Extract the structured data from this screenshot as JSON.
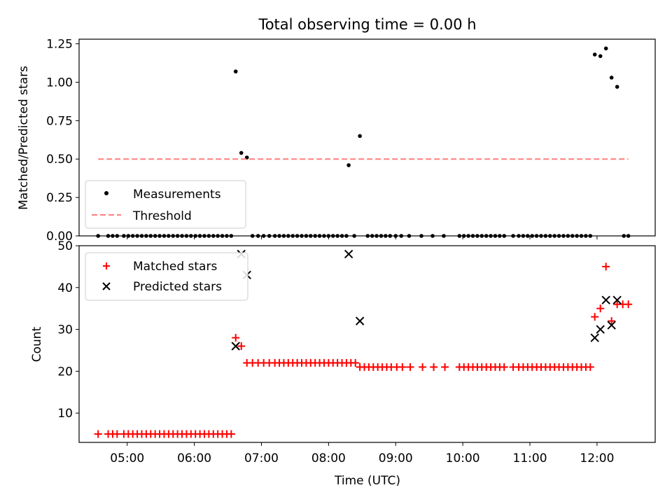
{
  "chart_data": [
    {
      "type": "scatter",
      "title": "Total observing time = 0.00 h",
      "ylabel": "Matched/Predicted stars",
      "xlim": [
        "04:17",
        "12:52"
      ],
      "ylim": [
        0,
        1.28
      ],
      "yticks": [
        0,
        0.25,
        0.5,
        0.75,
        1.0,
        1.25
      ],
      "ytick_labels": [
        "0.00",
        "0.25",
        "0.50",
        "0.75",
        "1.00",
        "1.25"
      ],
      "legend_position": "lower-left",
      "series": [
        {
          "name": "Measurements",
          "marker": "dot",
          "color": "#000000",
          "points": [
            [
              "04:34",
              0
            ],
            [
              "04:43",
              0
            ],
            [
              "04:47",
              0
            ],
            [
              "04:51",
              0
            ],
            [
              "04:57",
              0
            ],
            [
              "05:01",
              0
            ],
            [
              "05:05",
              0
            ],
            [
              "05:09",
              0
            ],
            [
              "05:13",
              0
            ],
            [
              "05:17",
              0
            ],
            [
              "05:21",
              0
            ],
            [
              "05:25",
              0
            ],
            [
              "05:29",
              0
            ],
            [
              "05:33",
              0
            ],
            [
              "05:37",
              0
            ],
            [
              "05:41",
              0
            ],
            [
              "05:45",
              0
            ],
            [
              "05:49",
              0
            ],
            [
              "05:53",
              0
            ],
            [
              "05:57",
              0
            ],
            [
              "06:01",
              0
            ],
            [
              "06:05",
              0
            ],
            [
              "06:09",
              0
            ],
            [
              "06:13",
              0
            ],
            [
              "06:17",
              0
            ],
            [
              "06:21",
              0
            ],
            [
              "06:25",
              0
            ],
            [
              "06:29",
              0
            ],
            [
              "06:33",
              0
            ],
            [
              "06:37",
              1.07
            ],
            [
              "06:42",
              0.54
            ],
            [
              "06:47",
              0.51
            ],
            [
              "06:52",
              0
            ],
            [
              "06:57",
              0
            ],
            [
              "07:02",
              0
            ],
            [
              "07:07",
              0
            ],
            [
              "07:12",
              0
            ],
            [
              "07:16",
              0
            ],
            [
              "07:20",
              0
            ],
            [
              "07:24",
              0
            ],
            [
              "07:28",
              0
            ],
            [
              "07:32",
              0
            ],
            [
              "07:36",
              0
            ],
            [
              "07:40",
              0
            ],
            [
              "07:44",
              0
            ],
            [
              "07:48",
              0
            ],
            [
              "07:52",
              0
            ],
            [
              "07:56",
              0
            ],
            [
              "08:00",
              0
            ],
            [
              "08:04",
              0
            ],
            [
              "08:08",
              0
            ],
            [
              "08:12",
              0
            ],
            [
              "08:16",
              0
            ],
            [
              "08:18",
              0.46
            ],
            [
              "08:28",
              0.65
            ],
            [
              "08:23",
              0
            ],
            [
              "08:35",
              0
            ],
            [
              "08:39",
              0
            ],
            [
              "08:43",
              0
            ],
            [
              "08:47",
              0
            ],
            [
              "08:51",
              0
            ],
            [
              "08:55",
              0
            ],
            [
              "09:00",
              0
            ],
            [
              "09:05",
              0
            ],
            [
              "09:12",
              0
            ],
            [
              "09:23",
              0
            ],
            [
              "09:33",
              0
            ],
            [
              "09:43",
              0
            ],
            [
              "09:57",
              0
            ],
            [
              "10:01",
              0
            ],
            [
              "10:05",
              0
            ],
            [
              "10:09",
              0
            ],
            [
              "10:13",
              0
            ],
            [
              "10:17",
              0
            ],
            [
              "10:21",
              0
            ],
            [
              "10:25",
              0
            ],
            [
              "10:29",
              0
            ],
            [
              "10:33",
              0
            ],
            [
              "10:37",
              0
            ],
            [
              "10:45",
              0
            ],
            [
              "10:50",
              0
            ],
            [
              "10:54",
              0
            ],
            [
              "10:58",
              0
            ],
            [
              "11:02",
              0
            ],
            [
              "11:06",
              0
            ],
            [
              "11:10",
              0
            ],
            [
              "11:14",
              0
            ],
            [
              "11:18",
              0
            ],
            [
              "11:22",
              0
            ],
            [
              "11:26",
              0
            ],
            [
              "11:30",
              0
            ],
            [
              "11:34",
              0
            ],
            [
              "11:38",
              0
            ],
            [
              "11:42",
              0
            ],
            [
              "11:46",
              0
            ],
            [
              "11:50",
              0
            ],
            [
              "11:54",
              0
            ],
            [
              "11:58",
              1.18
            ],
            [
              "12:03",
              1.17
            ],
            [
              "12:08",
              1.22
            ],
            [
              "12:13",
              1.03
            ],
            [
              "12:18",
              0.97
            ],
            [
              "12:24",
              0
            ],
            [
              "12:28",
              0
            ]
          ]
        },
        {
          "name": "Threshold",
          "style": "dashed-line",
          "color": "#ff7f7f",
          "points": [
            [
              "04:34",
              0.5
            ],
            [
              "12:28",
              0.5
            ]
          ]
        }
      ]
    },
    {
      "type": "scatter",
      "ylabel": "Count",
      "xlabel": "Time (UTC)",
      "xlim": [
        "04:17",
        "12:52"
      ],
      "ylim": [
        3,
        50
      ],
      "yticks": [
        10,
        20,
        30,
        40,
        50
      ],
      "ytick_labels": [
        "10",
        "20",
        "30",
        "40",
        "50"
      ],
      "xticks": [
        "05:00",
        "06:00",
        "07:00",
        "08:00",
        "09:00",
        "10:00",
        "11:00",
        "12:00"
      ],
      "legend_position": "upper-left",
      "series": [
        {
          "name": "Matched stars",
          "marker": "plus",
          "color": "#ff0000",
          "points": [
            [
              "04:34",
              5
            ],
            [
              "04:43",
              5
            ],
            [
              "04:47",
              5
            ],
            [
              "04:51",
              5
            ],
            [
              "04:57",
              5
            ],
            [
              "05:01",
              5
            ],
            [
              "05:05",
              5
            ],
            [
              "05:09",
              5
            ],
            [
              "05:13",
              5
            ],
            [
              "05:17",
              5
            ],
            [
              "05:21",
              5
            ],
            [
              "05:25",
              5
            ],
            [
              "05:29",
              5
            ],
            [
              "05:33",
              5
            ],
            [
              "05:37",
              5
            ],
            [
              "05:41",
              5
            ],
            [
              "05:45",
              5
            ],
            [
              "05:49",
              5
            ],
            [
              "05:53",
              5
            ],
            [
              "05:57",
              5
            ],
            [
              "06:01",
              5
            ],
            [
              "06:05",
              5
            ],
            [
              "06:09",
              5
            ],
            [
              "06:13",
              5
            ],
            [
              "06:17",
              5
            ],
            [
              "06:21",
              5
            ],
            [
              "06:25",
              5
            ],
            [
              "06:29",
              5
            ],
            [
              "06:33",
              5
            ],
            [
              "06:37",
              28
            ],
            [
              "06:42",
              26
            ],
            [
              "06:47",
              22
            ],
            [
              "06:52",
              22
            ],
            [
              "06:57",
              22
            ],
            [
              "07:02",
              22
            ],
            [
              "07:07",
              22
            ],
            [
              "07:12",
              22
            ],
            [
              "07:16",
              22
            ],
            [
              "07:20",
              22
            ],
            [
              "07:24",
              22
            ],
            [
              "07:28",
              22
            ],
            [
              "07:32",
              22
            ],
            [
              "07:36",
              22
            ],
            [
              "07:40",
              22
            ],
            [
              "07:44",
              22
            ],
            [
              "07:48",
              22
            ],
            [
              "07:52",
              22
            ],
            [
              "07:56",
              22
            ],
            [
              "08:00",
              22
            ],
            [
              "08:04",
              22
            ],
            [
              "08:08",
              22
            ],
            [
              "08:12",
              22
            ],
            [
              "08:16",
              22
            ],
            [
              "08:20",
              22
            ],
            [
              "08:24",
              22
            ],
            [
              "08:28",
              21
            ],
            [
              "08:32",
              21
            ],
            [
              "08:36",
              21
            ],
            [
              "08:40",
              21
            ],
            [
              "08:44",
              21
            ],
            [
              "08:48",
              21
            ],
            [
              "08:52",
              21
            ],
            [
              "08:56",
              21
            ],
            [
              "09:01",
              21
            ],
            [
              "09:06",
              21
            ],
            [
              "09:13",
              21
            ],
            [
              "09:24",
              21
            ],
            [
              "09:34",
              21
            ],
            [
              "09:44",
              21
            ],
            [
              "09:57",
              21
            ],
            [
              "10:01",
              21
            ],
            [
              "10:05",
              21
            ],
            [
              "10:09",
              21
            ],
            [
              "10:13",
              21
            ],
            [
              "10:17",
              21
            ],
            [
              "10:21",
              21
            ],
            [
              "10:25",
              21
            ],
            [
              "10:29",
              21
            ],
            [
              "10:33",
              21
            ],
            [
              "10:37",
              21
            ],
            [
              "10:45",
              21
            ],
            [
              "10:50",
              21
            ],
            [
              "10:54",
              21
            ],
            [
              "10:58",
              21
            ],
            [
              "11:02",
              21
            ],
            [
              "11:06",
              21
            ],
            [
              "11:10",
              21
            ],
            [
              "11:14",
              21
            ],
            [
              "11:18",
              21
            ],
            [
              "11:22",
              21
            ],
            [
              "11:26",
              21
            ],
            [
              "11:30",
              21
            ],
            [
              "11:34",
              21
            ],
            [
              "11:38",
              21
            ],
            [
              "11:42",
              21
            ],
            [
              "11:46",
              21
            ],
            [
              "11:50",
              21
            ],
            [
              "11:54",
              21
            ],
            [
              "11:58",
              33
            ],
            [
              "12:03",
              35
            ],
            [
              "12:08",
              45
            ],
            [
              "12:13",
              32
            ],
            [
              "12:18",
              36
            ],
            [
              "12:23",
              36
            ],
            [
              "12:28",
              36
            ]
          ]
        },
        {
          "name": "Predicted stars",
          "marker": "x",
          "color": "#000000",
          "points": [
            [
              "06:37",
              26
            ],
            [
              "06:42",
              48
            ],
            [
              "06:47",
              43
            ],
            [
              "08:18",
              48
            ],
            [
              "08:28",
              32
            ],
            [
              "11:58",
              28
            ],
            [
              "12:03",
              30
            ],
            [
              "12:08",
              37
            ],
            [
              "12:13",
              31
            ],
            [
              "12:18",
              37
            ]
          ]
        }
      ]
    }
  ]
}
